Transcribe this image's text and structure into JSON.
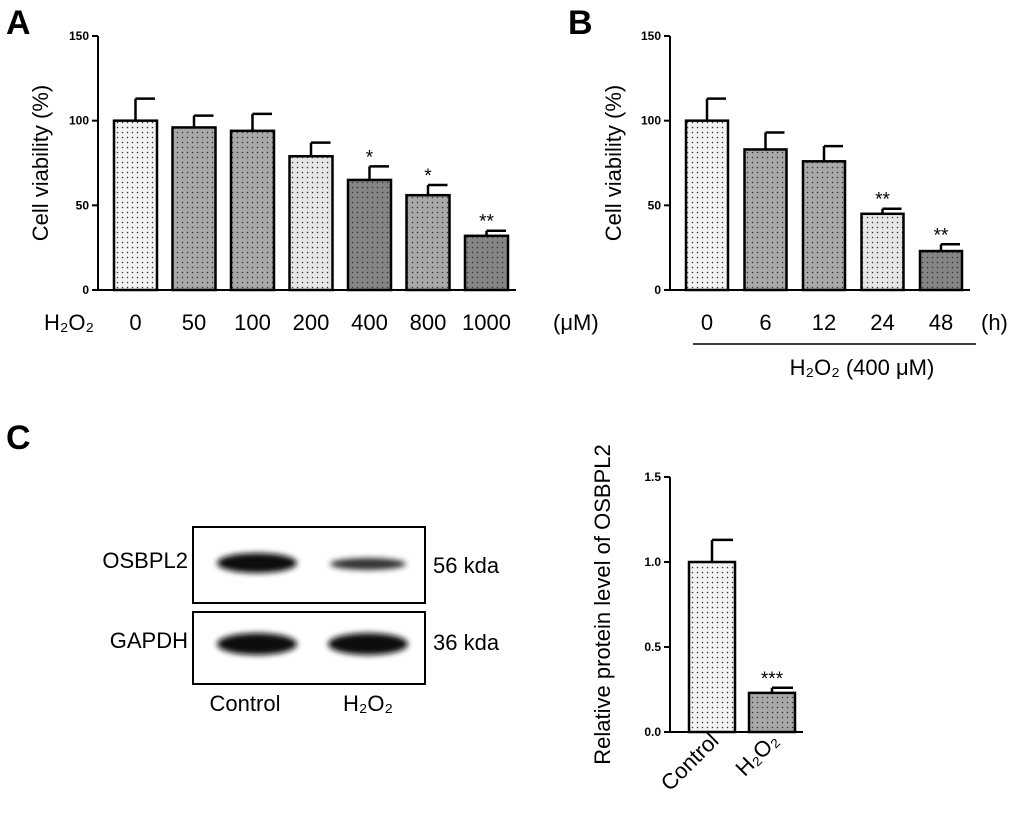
{
  "panels": {
    "A": {
      "letter": "A"
    },
    "B": {
      "letter": "B"
    },
    "C": {
      "letter": "C"
    }
  },
  "blot": {
    "bands": [
      "OSBPL2",
      "GAPDH"
    ],
    "sizes": [
      "56 kda",
      "36 kda"
    ],
    "lanes": [
      "Control",
      "H₂O₂"
    ]
  },
  "chart_data": [
    {
      "type": "bar",
      "panel": "A",
      "ylabel": "Cell viability (%)",
      "ylim": [
        0,
        150
      ],
      "yticks": [
        0,
        50,
        100,
        150
      ],
      "x_prefix": "H₂O₂",
      "x_unit": "(μM)",
      "categories": [
        "0",
        "50",
        "100",
        "200",
        "400",
        "800",
        "1000"
      ],
      "values": [
        100,
        96,
        94,
        79,
        65,
        56,
        32
      ],
      "errors": [
        13,
        7,
        10,
        8,
        8,
        6,
        3
      ],
      "significance": [
        "",
        "",
        "",
        "",
        "*",
        "*",
        "**"
      ],
      "fills": [
        "#f2f2f2",
        "#a8a8a8",
        "#a8a8a8",
        "#e6e6e6",
        "#858585",
        "#a8a8a8",
        "#858585"
      ]
    },
    {
      "type": "bar",
      "panel": "B",
      "ylabel": "Cell viability (%)",
      "ylim": [
        0,
        150
      ],
      "yticks": [
        0,
        50,
        100,
        150
      ],
      "x_unit": "(h)",
      "x_group_label": "H₂O₂ (400 μM)",
      "categories": [
        "0",
        "6",
        "12",
        "24",
        "48"
      ],
      "values": [
        100,
        83,
        76,
        45,
        23
      ],
      "errors": [
        13,
        10,
        9,
        3,
        4
      ],
      "significance": [
        "",
        "",
        "",
        "**",
        "**"
      ],
      "fills": [
        "#f2f2f2",
        "#a8a8a8",
        "#a8a8a8",
        "#e6e6e6",
        "#858585"
      ]
    },
    {
      "type": "bar",
      "panel": "C",
      "ylabel": "Relative protein level of OSBPL2",
      "ylim": [
        0,
        1.5
      ],
      "yticks": [
        0.0,
        0.5,
        1.0,
        1.5
      ],
      "categories": [
        "Control",
        "H₂O₂"
      ],
      "values": [
        1.0,
        0.23
      ],
      "errors": [
        0.13,
        0.03
      ],
      "significance": [
        "",
        "***"
      ],
      "fills": [
        "#f2f2f2",
        "#a8a8a8"
      ]
    }
  ]
}
